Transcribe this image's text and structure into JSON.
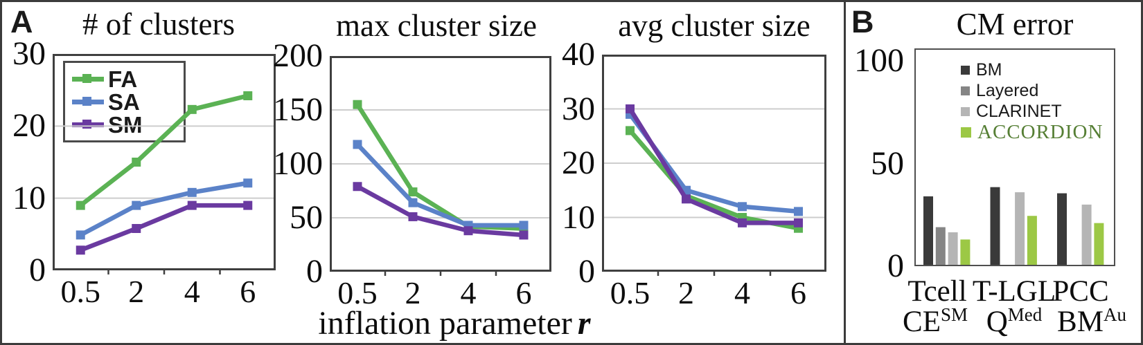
{
  "figure": {
    "panel_a": {
      "label": "A"
    },
    "panel_b": {
      "label": "B"
    },
    "x_axis_title": {
      "text": "inflation parameter",
      "var": "r"
    }
  },
  "palette": {
    "fa_green": "#5bb254",
    "sa_blue": "#5b82c8",
    "sm_purple": "#6a3aa0",
    "bm_dark": "#3a3a3a",
    "layered_gray": "#858585",
    "clarinet_gray": "#b5b5b5",
    "accordion_green": "#9cc845",
    "accordion_text_green": "#567f35",
    "gridline": "#cdcdcd",
    "frame": "#3f3f3f"
  },
  "chart_data": [
    {
      "type": "line",
      "title": "# of clusters",
      "x_categories": [
        "0.5",
        "2",
        "4",
        "6"
      ],
      "xlabel": "inflation parameter r",
      "ylim": [
        0,
        30
      ],
      "yticks": [
        0,
        10,
        20,
        30
      ],
      "grid": true,
      "legend_position": "top-left",
      "legend_entries": [
        "FA",
        "SA",
        "SM"
      ],
      "series": [
        {
          "name": "FA",
          "color": "#5bb254",
          "values": [
            9,
            15,
            22.3,
            24.2
          ]
        },
        {
          "name": "SA",
          "color": "#5b82c8",
          "values": [
            4.9,
            9,
            10.8,
            12.1
          ]
        },
        {
          "name": "SM",
          "color": "#6a3aa0",
          "values": [
            2.8,
            5.8,
            9,
            9
          ]
        }
      ]
    },
    {
      "type": "line",
      "title": "max cluster size",
      "x_categories": [
        "0.5",
        "2",
        "4",
        "6"
      ],
      "xlabel": "inflation parameter r",
      "ylim": [
        0,
        200
      ],
      "yticks": [
        0,
        50,
        100,
        150,
        200
      ],
      "grid": true,
      "series": [
        {
          "name": "FA",
          "color": "#5bb254",
          "values": [
            155,
            74,
            42,
            40
          ]
        },
        {
          "name": "SA",
          "color": "#5b82c8",
          "values": [
            118,
            64,
            43,
            43
          ]
        },
        {
          "name": "SM",
          "color": "#6a3aa0",
          "values": [
            79,
            51,
            38,
            34
          ]
        }
      ]
    },
    {
      "type": "line",
      "title": "avg cluster size",
      "x_categories": [
        "0.5",
        "2",
        "4",
        "6"
      ],
      "xlabel": "inflation parameter r",
      "ylim": [
        0,
        40
      ],
      "yticks": [
        0,
        10,
        20,
        30,
        40
      ],
      "grid": true,
      "series": [
        {
          "name": "FA",
          "color": "#5bb254",
          "values": [
            26,
            14,
            10,
            8
          ]
        },
        {
          "name": "SA",
          "color": "#5b82c8",
          "values": [
            29,
            15,
            12,
            11.1
          ]
        },
        {
          "name": "SM",
          "color": "#6a3aa0",
          "values": [
            30,
            13.4,
            9,
            9
          ]
        }
      ]
    },
    {
      "type": "bar",
      "title": "CM error",
      "ylim": [
        0,
        100
      ],
      "yticks": [
        0,
        50,
        100
      ],
      "grid": false,
      "legend_position": "top-center",
      "categories": [
        {
          "line1": "Tcell",
          "base": "CE",
          "sup": "SM"
        },
        {
          "line1": "T-LGL",
          "base": "Q",
          "sup": "Med"
        },
        {
          "line1": "PCC",
          "base": "BM",
          "sup": "Au"
        }
      ],
      "series": [
        {
          "name": "BM",
          "color": "#3a3a3a",
          "values": [
            34,
            38.5,
            35.5
          ]
        },
        {
          "name": "Layered",
          "color": "#858585",
          "values": [
            19,
            null,
            null
          ]
        },
        {
          "name": "CLARINET",
          "color": "#b5b5b5",
          "values": [
            16.5,
            36,
            30
          ]
        },
        {
          "name": "ACCORDION",
          "color": "#9cc845",
          "values": [
            13,
            24.5,
            21
          ]
        }
      ]
    }
  ]
}
